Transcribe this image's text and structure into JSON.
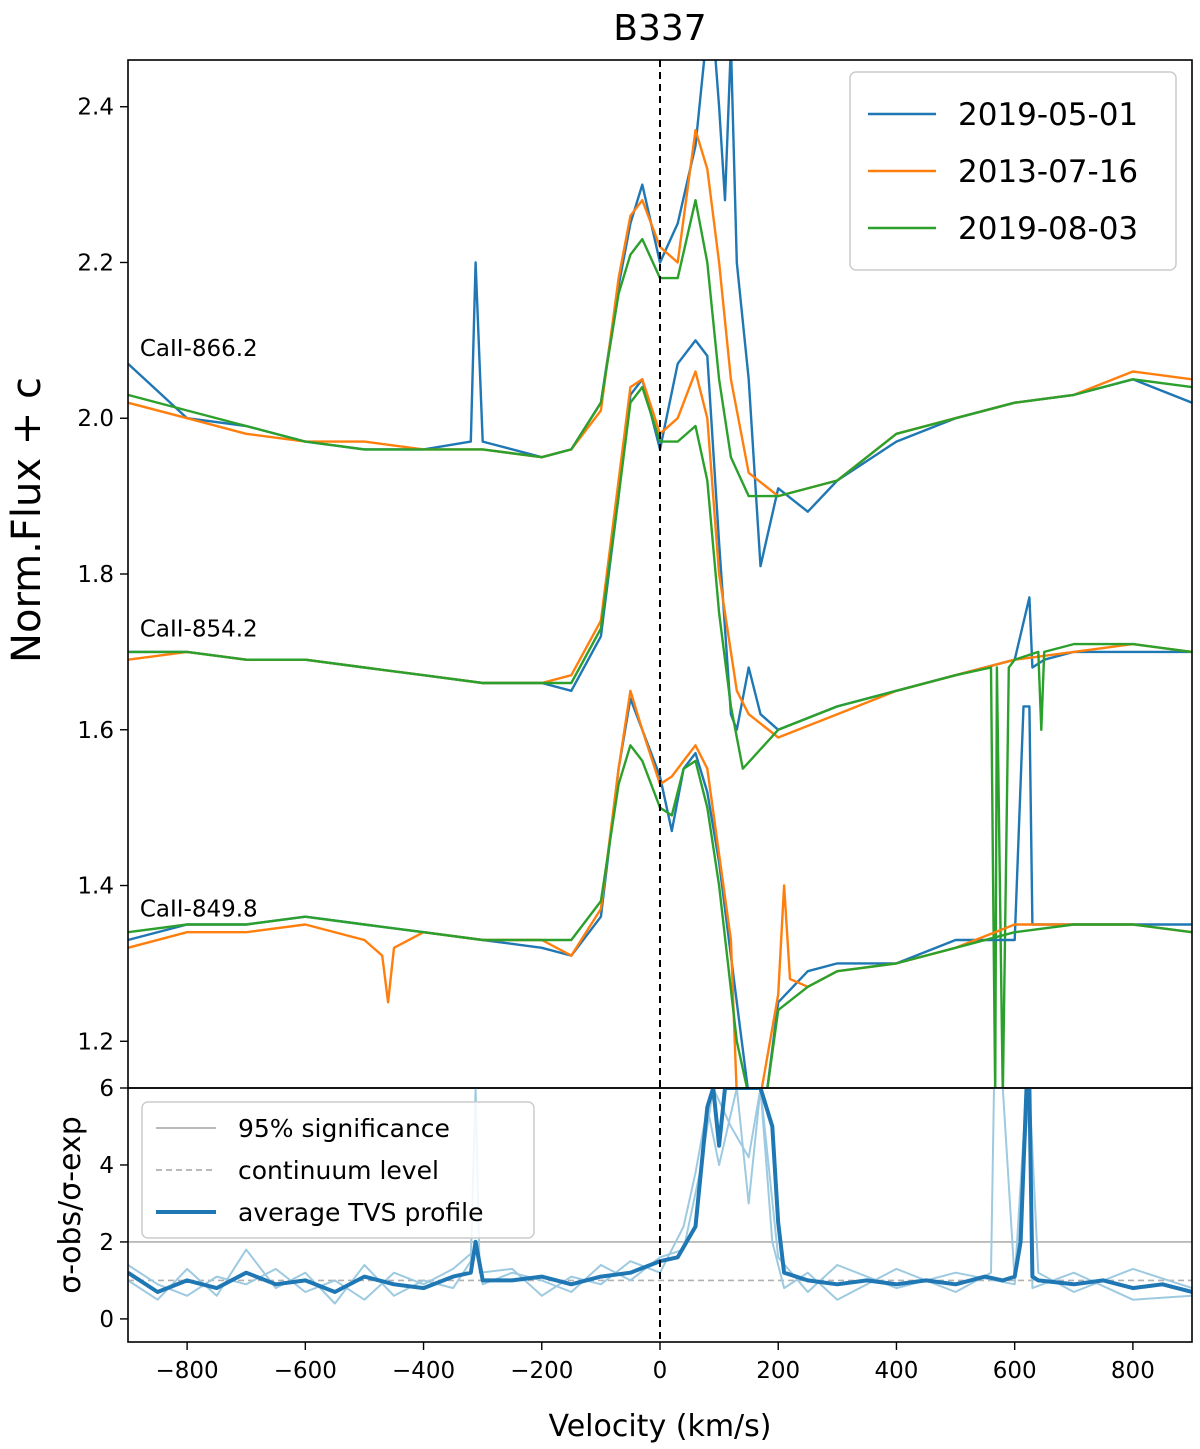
{
  "chart_data": [
    {
      "type": "line",
      "title": "B337",
      "xlabel": "",
      "ylabel": "Norm.Flux + c",
      "xlim": [
        -900,
        900
      ],
      "ylim": [
        1.14,
        2.46
      ],
      "yticks": [
        1.2,
        1.4,
        1.6,
        1.8,
        2.0,
        2.2,
        2.4
      ],
      "ytick_labels": [
        "1.2",
        "1.4",
        "1.6",
        "1.8",
        "2.0",
        "2.2",
        "2.4"
      ],
      "reference_line": {
        "x": 0,
        "style": "dashed",
        "color": "#000000"
      },
      "line_labels": [
        {
          "text": "CaII-866.2",
          "x": -880,
          "y": 2.08
        },
        {
          "text": "CaII-854.2",
          "x": -880,
          "y": 1.72
        },
        {
          "text": "CaII-849.8",
          "x": -880,
          "y": 1.36
        }
      ],
      "legend": {
        "position": "top-right",
        "entries": [
          "2019-05-01",
          "2013-07-16",
          "2019-08-03"
        ]
      },
      "colors": {
        "2019-05-01": "#1f77b4",
        "2013-07-16": "#ff7f0e",
        "2019-08-03": "#2ca02c"
      },
      "series": [
        {
          "name": "2019-05-01",
          "color": "#1f77b4",
          "group": "CaII-866.2",
          "offset": 2.0,
          "x": [
            -900,
            -800,
            -700,
            -600,
            -500,
            -400,
            -320,
            -312,
            -300,
            -200,
            -150,
            -100,
            -70,
            -50,
            -30,
            0,
            30,
            60,
            80,
            90,
            100,
            110,
            120,
            130,
            150,
            170,
            200,
            250,
            300,
            400,
            500,
            600,
            700,
            800,
            900
          ],
          "y": [
            2.07,
            2.0,
            1.99,
            1.97,
            1.96,
            1.96,
            1.97,
            2.2,
            1.97,
            1.95,
            1.96,
            2.02,
            2.17,
            2.25,
            2.3,
            2.2,
            2.25,
            2.35,
            2.5,
            2.5,
            2.4,
            2.28,
            2.48,
            2.2,
            2.05,
            1.81,
            1.91,
            1.88,
            1.92,
            1.97,
            2.0,
            2.02,
            2.03,
            2.05,
            2.02
          ]
        },
        {
          "name": "2013-07-16",
          "color": "#ff7f0e",
          "group": "CaII-866.2",
          "offset": 2.0,
          "x": [
            -900,
            -800,
            -700,
            -600,
            -500,
            -400,
            -300,
            -200,
            -150,
            -100,
            -70,
            -50,
            -30,
            0,
            30,
            60,
            80,
            100,
            120,
            150,
            200,
            300,
            400,
            500,
            600,
            700,
            800,
            900
          ],
          "y": [
            2.02,
            2.0,
            1.98,
            1.97,
            1.97,
            1.96,
            1.96,
            1.95,
            1.96,
            2.01,
            2.18,
            2.26,
            2.28,
            2.22,
            2.2,
            2.37,
            2.32,
            2.2,
            2.05,
            1.93,
            1.9,
            1.92,
            1.98,
            2.0,
            2.02,
            2.03,
            2.06,
            2.05
          ]
        },
        {
          "name": "2019-08-03",
          "color": "#2ca02c",
          "group": "CaII-866.2",
          "offset": 2.0,
          "x": [
            -900,
            -800,
            -700,
            -600,
            -500,
            -400,
            -300,
            -200,
            -150,
            -100,
            -70,
            -50,
            -30,
            0,
            30,
            60,
            80,
            100,
            120,
            150,
            200,
            300,
            400,
            500,
            600,
            700,
            800,
            900
          ],
          "y": [
            2.03,
            2.01,
            1.99,
            1.97,
            1.96,
            1.96,
            1.96,
            1.95,
            1.96,
            2.02,
            2.16,
            2.21,
            2.23,
            2.18,
            2.18,
            2.28,
            2.2,
            2.05,
            1.95,
            1.9,
            1.9,
            1.92,
            1.98,
            2.0,
            2.02,
            2.03,
            2.05,
            2.04
          ]
        },
        {
          "name": "2019-05-01",
          "color": "#1f77b4",
          "group": "CaII-854.2",
          "offset": 1.7,
          "x": [
            -900,
            -800,
            -700,
            -600,
            -500,
            -400,
            -300,
            -200,
            -150,
            -100,
            -70,
            -50,
            -30,
            0,
            30,
            60,
            80,
            100,
            120,
            130,
            150,
            170,
            200,
            300,
            400,
            500,
            600,
            625,
            630,
            650,
            700,
            800,
            900
          ],
          "y": [
            1.7,
            1.7,
            1.69,
            1.69,
            1.68,
            1.67,
            1.66,
            1.66,
            1.65,
            1.72,
            1.9,
            2.03,
            2.05,
            1.96,
            2.07,
            2.1,
            2.08,
            1.84,
            1.62,
            1.6,
            1.68,
            1.62,
            1.6,
            1.63,
            1.65,
            1.67,
            1.69,
            1.77,
            1.68,
            1.69,
            1.7,
            1.7,
            1.7
          ]
        },
        {
          "name": "2013-07-16",
          "color": "#ff7f0e",
          "group": "CaII-854.2",
          "offset": 1.7,
          "x": [
            -900,
            -800,
            -700,
            -600,
            -500,
            -400,
            -300,
            -200,
            -150,
            -100,
            -70,
            -50,
            -30,
            0,
            30,
            60,
            80,
            100,
            130,
            150,
            200,
            300,
            400,
            500,
            600,
            700,
            800,
            900
          ],
          "y": [
            1.69,
            1.7,
            1.69,
            1.69,
            1.68,
            1.67,
            1.66,
            1.66,
            1.67,
            1.74,
            1.92,
            2.04,
            2.05,
            1.98,
            2.0,
            2.06,
            2.0,
            1.8,
            1.65,
            1.62,
            1.59,
            1.62,
            1.65,
            1.67,
            1.69,
            1.7,
            1.71,
            1.7
          ]
        },
        {
          "name": "2019-08-03",
          "color": "#2ca02c",
          "group": "CaII-854.2",
          "offset": 1.7,
          "x": [
            -900,
            -800,
            -700,
            -600,
            -500,
            -400,
            -300,
            -200,
            -150,
            -100,
            -70,
            -50,
            -30,
            0,
            30,
            60,
            80,
            100,
            120,
            140,
            200,
            300,
            400,
            500,
            560,
            567,
            570,
            580,
            590,
            600,
            640,
            645,
            650,
            700,
            800,
            900
          ],
          "y": [
            1.7,
            1.7,
            1.69,
            1.69,
            1.68,
            1.67,
            1.66,
            1.66,
            1.66,
            1.73,
            1.9,
            2.02,
            2.04,
            1.97,
            1.97,
            1.99,
            1.92,
            1.75,
            1.63,
            1.55,
            1.6,
            1.63,
            1.65,
            1.67,
            1.68,
            1.13,
            1.68,
            1.13,
            1.68,
            1.69,
            1.7,
            1.6,
            1.7,
            1.71,
            1.71,
            1.7
          ]
        },
        {
          "name": "2019-05-01",
          "color": "#1f77b4",
          "group": "CaII-849.8",
          "offset": 1.35,
          "x": [
            -900,
            -800,
            -700,
            -600,
            -500,
            -400,
            -300,
            -200,
            -150,
            -100,
            -70,
            -50,
            -30,
            0,
            20,
            40,
            60,
            80,
            100,
            130,
            150,
            180,
            200,
            250,
            300,
            400,
            500,
            580,
            600,
            615,
            625,
            630,
            640,
            700,
            800,
            900
          ],
          "y": [
            1.33,
            1.35,
            1.35,
            1.36,
            1.35,
            1.34,
            1.33,
            1.32,
            1.31,
            1.36,
            1.55,
            1.64,
            1.6,
            1.54,
            1.47,
            1.55,
            1.57,
            1.52,
            1.43,
            1.25,
            1.13,
            1.13,
            1.25,
            1.29,
            1.3,
            1.3,
            1.33,
            1.33,
            1.33,
            1.63,
            1.63,
            1.35,
            1.35,
            1.35,
            1.35,
            1.35
          ]
        },
        {
          "name": "2013-07-16",
          "color": "#ff7f0e",
          "group": "CaII-849.8",
          "offset": 1.35,
          "x": [
            -900,
            -800,
            -700,
            -600,
            -500,
            -470,
            -460,
            -450,
            -400,
            -300,
            -200,
            -150,
            -100,
            -70,
            -50,
            -30,
            0,
            20,
            40,
            60,
            80,
            100,
            120,
            130,
            150,
            160,
            170,
            200,
            210,
            220,
            250,
            300,
            400,
            500,
            600,
            700,
            800,
            900
          ],
          "y": [
            1.32,
            1.34,
            1.34,
            1.35,
            1.33,
            1.31,
            1.25,
            1.32,
            1.34,
            1.33,
            1.33,
            1.31,
            1.37,
            1.55,
            1.65,
            1.6,
            1.53,
            1.54,
            1.56,
            1.58,
            1.55,
            1.44,
            1.33,
            1.13,
            1.13,
            1.13,
            1.13,
            1.26,
            1.4,
            1.28,
            1.27,
            1.29,
            1.3,
            1.32,
            1.35,
            1.35,
            1.35,
            1.34
          ]
        },
        {
          "name": "2019-08-03",
          "color": "#2ca02c",
          "group": "CaII-849.8",
          "offset": 1.35,
          "x": [
            -900,
            -800,
            -700,
            -600,
            -500,
            -400,
            -300,
            -200,
            -150,
            -100,
            -70,
            -50,
            -30,
            0,
            20,
            40,
            60,
            80,
            100,
            130,
            150,
            180,
            200,
            250,
            300,
            400,
            500,
            600,
            700,
            800,
            900
          ],
          "y": [
            1.34,
            1.35,
            1.35,
            1.36,
            1.35,
            1.34,
            1.33,
            1.33,
            1.33,
            1.38,
            1.53,
            1.58,
            1.56,
            1.5,
            1.49,
            1.55,
            1.56,
            1.5,
            1.4,
            1.2,
            1.13,
            1.13,
            1.24,
            1.27,
            1.29,
            1.3,
            1.32,
            1.34,
            1.35,
            1.35,
            1.34
          ]
        }
      ]
    },
    {
      "type": "line",
      "title": "",
      "xlabel": "Velocity (km/s)",
      "ylabel": "σ-obs/σ-exp",
      "xlim": [
        -900,
        900
      ],
      "ylim": [
        -0.6,
        6
      ],
      "xticks": [
        -800,
        -600,
        -400,
        -200,
        0,
        200,
        400,
        600,
        800
      ],
      "xtick_labels": [
        "−800",
        "−600",
        "−400",
        "−200",
        "0",
        "200",
        "400",
        "600",
        "800"
      ],
      "yticks": [
        0,
        2,
        4,
        6
      ],
      "ytick_labels": [
        "0",
        "2",
        "4",
        "6"
      ],
      "legend": {
        "position": "top-left",
        "entries": [
          "95% significance",
          "continuum level",
          "average TVS profile"
        ]
      },
      "colors": {
        "95% significance": "#b0b0b0",
        "continuum level": "#b0b0b0",
        "average TVS profile": "#1f77b4",
        "individual TVS": "#9ecae1"
      },
      "significance_level": 2.0,
      "continuum_level": 1.0,
      "series": [
        {
          "name": "average TVS profile",
          "color": "#1f77b4",
          "x": [
            -900,
            -850,
            -800,
            -750,
            -700,
            -650,
            -600,
            -550,
            -500,
            -450,
            -400,
            -350,
            -320,
            -312,
            -300,
            -250,
            -200,
            -150,
            -100,
            -50,
            0,
            30,
            60,
            80,
            90,
            100,
            110,
            130,
            150,
            170,
            190,
            200,
            210,
            250,
            300,
            350,
            400,
            450,
            500,
            550,
            580,
            600,
            610,
            620,
            625,
            630,
            640,
            700,
            750,
            800,
            850,
            900
          ],
          "y": [
            1.2,
            0.7,
            1.0,
            0.8,
            1.2,
            0.9,
            1.0,
            0.7,
            1.1,
            0.9,
            0.8,
            1.1,
            1.2,
            2.0,
            1.0,
            1.0,
            1.1,
            0.9,
            1.1,
            1.2,
            1.5,
            1.6,
            2.4,
            5.5,
            6.0,
            4.5,
            6.0,
            6.0,
            6.0,
            6.0,
            5.0,
            2.5,
            1.2,
            1.0,
            0.9,
            1.0,
            0.9,
            1.0,
            0.9,
            1.1,
            1.0,
            1.1,
            2.0,
            6.0,
            6.0,
            1.1,
            1.0,
            0.9,
            1.0,
            0.8,
            0.9,
            0.7
          ]
        },
        {
          "name": "",
          "color": "#9ecae1",
          "style": "individual",
          "x": [
            -900,
            -850,
            -800,
            -750,
            -700,
            -650,
            -600,
            -550,
            -500,
            -450,
            -400,
            -350,
            -320,
            -312,
            -305,
            -250,
            -200,
            -150,
            -100,
            -50,
            0,
            40,
            60,
            80,
            100,
            130,
            150,
            170,
            190,
            210,
            250,
            300,
            400,
            500,
            560,
            565,
            570,
            580,
            600,
            620,
            625,
            630,
            700,
            800,
            900
          ],
          "y": [
            1.0,
            0.5,
            1.3,
            0.6,
            1.8,
            0.8,
            1.2,
            0.4,
            1.4,
            0.6,
            1.0,
            0.8,
            1.5,
            6.0,
            1.2,
            1.3,
            0.6,
            1.1,
            0.9,
            1.5,
            1.2,
            2.4,
            3.8,
            5.5,
            4.0,
            6.0,
            3.0,
            6.0,
            2.0,
            0.8,
            1.2,
            0.5,
            1.3,
            0.7,
            1.2,
            6.0,
            6.0,
            6.0,
            1.0,
            6.0,
            6.0,
            0.8,
            1.2,
            0.5,
            0.6
          ]
        },
        {
          "name": "",
          "color": "#9ecae1",
          "style": "individual",
          "x": [
            -900,
            -850,
            -800,
            -750,
            -700,
            -650,
            -600,
            -550,
            -500,
            -450,
            -400,
            -350,
            -312,
            -300,
            -250,
            -200,
            -150,
            -100,
            -50,
            0,
            40,
            70,
            90,
            120,
            150,
            170,
            200,
            250,
            300,
            400,
            500,
            600,
            625,
            640,
            700,
            800,
            900
          ],
          "y": [
            1.4,
            0.9,
            0.6,
            1.1,
            0.9,
            1.3,
            0.7,
            1.0,
            0.5,
            1.2,
            0.9,
            1.3,
            1.8,
            0.9,
            1.2,
            1.0,
            0.7,
            1.4,
            1.0,
            1.6,
            1.8,
            4.0,
            6.0,
            5.0,
            4.2,
            6.0,
            1.6,
            0.7,
            1.4,
            0.8,
            1.2,
            0.9,
            6.0,
            1.2,
            0.7,
            1.3,
            0.8
          ]
        }
      ]
    }
  ]
}
